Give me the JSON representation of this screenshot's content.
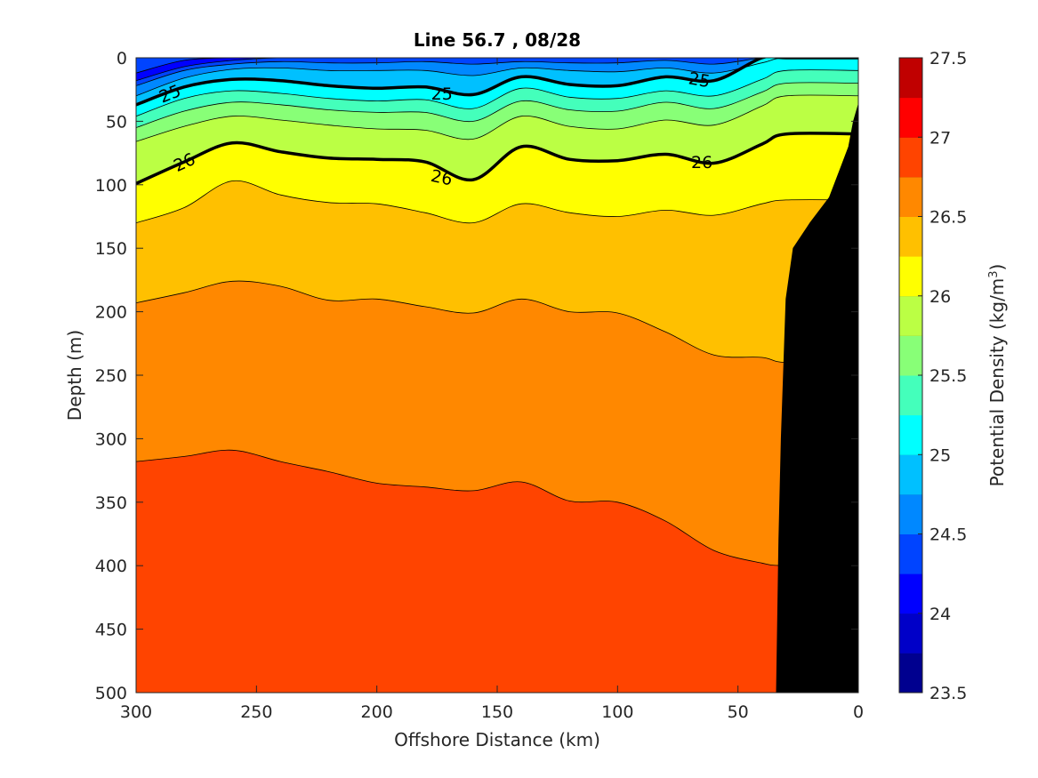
{
  "chart_data": {
    "type": "contourf",
    "title": "Line 56.7 , 08/28",
    "xlabel": "Offshore Distance (km)",
    "ylabel": "Depth (m)",
    "colorbar_label_text": "Potential Density (kg/m",
    "colorbar_label_sup": "3",
    "colorbar_label_close": ")",
    "xlim": [
      300,
      0
    ],
    "ylim": [
      0,
      500
    ],
    "x_reversed": true,
    "y_reversed": true,
    "x_ticks": [
      300,
      250,
      200,
      150,
      100,
      50,
      0
    ],
    "x_tick_labels": [
      "300",
      "250",
      "200",
      "150",
      "100",
      "50",
      "0"
    ],
    "y_ticks": [
      0,
      50,
      100,
      150,
      200,
      250,
      300,
      350,
      400,
      450,
      500
    ],
    "y_tick_labels": [
      "0",
      "50",
      "100",
      "150",
      "200",
      "250",
      "300",
      "350",
      "400",
      "450",
      "500"
    ],
    "colorbar_range": [
      23.5,
      27.5
    ],
    "colorbar_ticks": [
      23.5,
      24,
      24.5,
      25,
      25.5,
      26,
      26.5,
      27,
      27.5
    ],
    "colorbar_tick_labels": [
      "23.5",
      "24",
      "24.5",
      "25",
      "25.5",
      "26",
      "26.5",
      "27",
      "27.5"
    ],
    "levels": [
      23.5,
      23.75,
      24.0,
      24.25,
      24.5,
      24.75,
      25.0,
      25.25,
      25.5,
      25.75,
      26.0,
      26.25,
      26.5,
      26.75,
      27.0,
      27.25,
      27.5
    ],
    "colormap": [
      "#00008f",
      "#0000c8",
      "#0000ff",
      "#0044ff",
      "#0088ff",
      "#00c0ff",
      "#00ffff",
      "#44ffbb",
      "#88ff77",
      "#bbff44",
      "#ffff00",
      "#ffc000",
      "#ff8800",
      "#ff4400",
      "#ff0000",
      "#c00000"
    ],
    "contour_x_km": [
      300,
      280,
      260,
      240,
      220,
      200,
      180,
      160,
      140,
      120,
      100,
      80,
      60,
      40,
      30
    ],
    "contours": [
      {
        "level": 24.0,
        "depth_m": [
          12,
          2,
          0,
          0,
          0,
          0,
          0,
          0,
          0,
          0,
          0,
          0,
          0,
          0,
          0
        ]
      },
      {
        "level": 24.25,
        "depth_m": [
          18,
          7,
          2,
          0,
          0,
          0,
          0,
          0,
          0,
          0,
          0,
          0,
          0,
          0,
          0
        ]
      },
      {
        "level": 24.5,
        "depth_m": [
          22,
          10,
          5,
          3,
          4,
          4,
          3,
          5,
          3,
          4,
          4,
          2,
          5,
          0,
          0
        ]
      },
      {
        "level": 24.75,
        "depth_m": [
          30,
          16,
          9,
          8,
          10,
          10,
          10,
          14,
          8,
          10,
          11,
          8,
          12,
          4,
          0
        ]
      },
      {
        "level": 25.0,
        "depth_m": [
          37,
          23,
          17,
          18,
          22,
          24,
          23,
          29,
          15,
          21,
          22,
          15,
          18,
          0,
          0
        ]
      },
      {
        "level": 25.25,
        "depth_m": [
          46,
          32,
          26,
          28,
          32,
          34,
          33,
          40,
          24,
          31,
          32,
          26,
          30,
          17,
          10
        ]
      },
      {
        "level": 25.5,
        "depth_m": [
          55,
          42,
          35,
          37,
          41,
          43,
          43,
          50,
          34,
          41,
          42,
          35,
          40,
          27,
          20
        ]
      },
      {
        "level": 25.75,
        "depth_m": [
          66,
          54,
          46,
          49,
          53,
          56,
          57,
          64,
          46,
          54,
          56,
          49,
          53,
          38,
          30
        ]
      },
      {
        "level": 26.0,
        "depth_m": [
          99,
          82,
          67,
          74,
          79,
          80,
          82,
          96,
          70,
          80,
          81,
          76,
          83,
          68,
          60
        ]
      },
      {
        "level": 26.25,
        "depth_m": [
          130,
          118,
          97,
          108,
          114,
          115,
          122,
          130,
          115,
          122,
          125,
          120,
          124,
          115,
          112
        ]
      },
      {
        "level": 26.5,
        "depth_m": [
          193,
          185,
          176,
          180,
          191,
          190,
          196,
          201,
          190,
          200,
          201,
          216,
          234,
          236,
          240
        ]
      },
      {
        "level": 26.75,
        "depth_m": [
          318,
          314,
          309,
          318,
          326,
          335,
          338,
          341,
          334,
          349,
          350,
          365,
          388,
          398,
          400
        ]
      }
    ],
    "labels": [
      {
        "text": "25",
        "x_km": 286,
        "depth_m": 28,
        "angle_deg": -22
      },
      {
        "text": "25",
        "x_km": 173,
        "depth_m": 28,
        "angle_deg": 0
      },
      {
        "text": "25",
        "x_km": 66,
        "depth_m": 17,
        "angle_deg": 10
      },
      {
        "text": "26",
        "x_km": 280,
        "depth_m": 82,
        "angle_deg": -25
      },
      {
        "text": "26",
        "x_km": 173,
        "depth_m": 94,
        "angle_deg": 12
      },
      {
        "text": "26",
        "x_km": 65,
        "depth_m": 82,
        "angle_deg": 0
      }
    ],
    "bottom_mask": {
      "color": "#000000",
      "x_km": [
        0,
        0,
        2,
        4,
        7,
        12,
        20,
        27,
        30,
        32,
        33,
        34
      ],
      "depth_m": [
        500,
        37,
        50,
        70,
        85,
        110,
        130,
        150,
        190,
        300,
        380,
        500
      ]
    },
    "grid": false,
    "legend": "colorbar-right"
  }
}
